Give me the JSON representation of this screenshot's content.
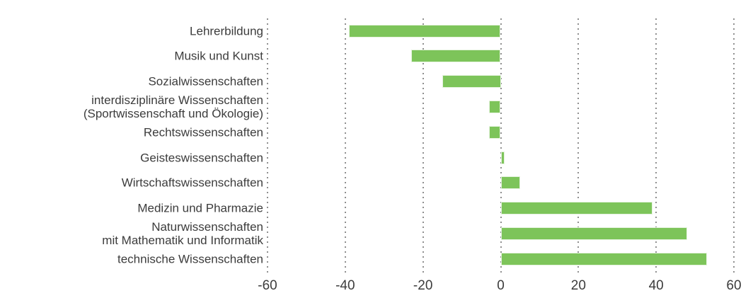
{
  "chart_data": {
    "type": "bar",
    "orientation": "horizontal",
    "title": "",
    "xlabel": "",
    "ylabel": "",
    "categories": [
      "Lehrerbildung",
      "Musik und Kunst",
      "Sozialwissenschaften",
      "interdisziplinäre Wissenschaften\n(Sportwissenschaft und Ökologie)",
      "Rechtswissenschaften",
      "Geisteswissenschaften",
      "Wirtschaftswissenschaften",
      "Medizin und Pharmazie",
      "Naturwissenschaften\nmit Mathematik und Informatik",
      "technische Wissenschaften"
    ],
    "values": [
      -39,
      -23,
      -15,
      -3,
      -3,
      1,
      5,
      39,
      48,
      53
    ],
    "xlim": [
      -60,
      60
    ],
    "xticks": [
      -60,
      -40,
      -20,
      0,
      20,
      40,
      60
    ],
    "grid": "vertical-dotted",
    "legend": "none",
    "colors": {
      "bar": "#7dc45a",
      "grid": "#8f8f8f",
      "text": "#3c3c3c"
    }
  }
}
